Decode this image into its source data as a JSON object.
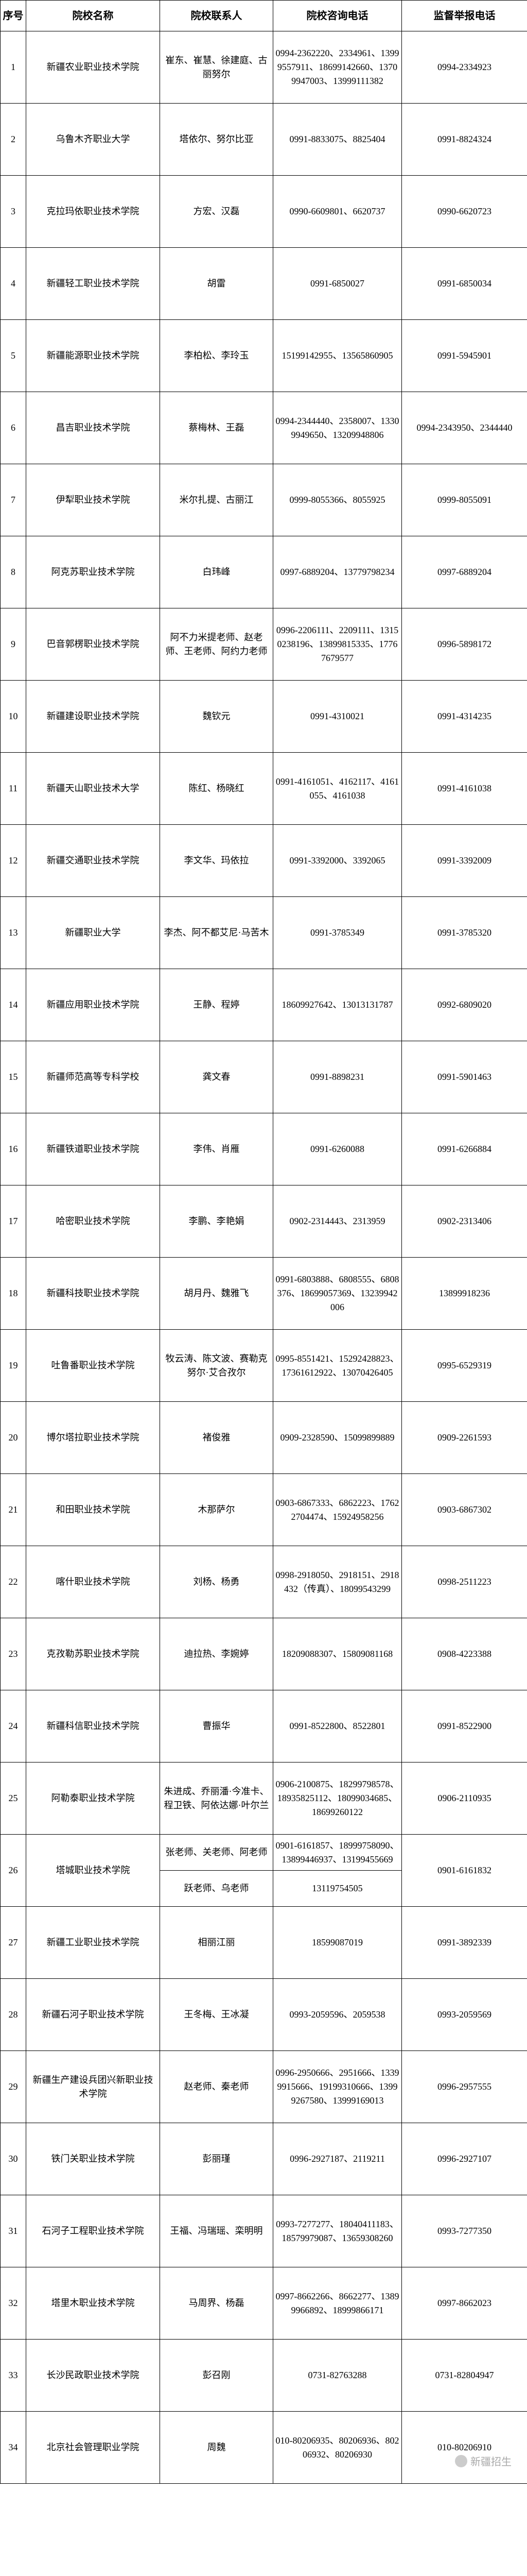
{
  "headers": [
    "序号",
    "院校名称",
    "院校联系人",
    "院校咨询电话",
    "监督举报电话"
  ],
  "col_classes": [
    "col-idx",
    "col-name",
    "col-contact",
    "col-phone",
    "col-supervise"
  ],
  "rows": [
    {
      "idx": "1",
      "name": "新疆农业职业技术学院",
      "contact": "崔东、崔慧、徐建庭、古丽努尔",
      "phone": "0994-2362220、2334961、13999557911、18699142660、13709947003、13999111382",
      "supervise": "0994-2334923"
    },
    {
      "idx": "2",
      "name": "乌鲁木齐职业大学",
      "contact": "塔依尔、努尔比亚",
      "phone": "0991-8833075、8825404",
      "supervise": "0991-8824324"
    },
    {
      "idx": "3",
      "name": "克拉玛依职业技术学院",
      "contact": "方宏、汉磊",
      "phone": "0990-6609801、6620737",
      "supervise": "0990-6620723"
    },
    {
      "idx": "4",
      "name": "新疆轻工职业技术学院",
      "contact": "胡雷",
      "phone": "0991-6850027",
      "supervise": "0991-6850034"
    },
    {
      "idx": "5",
      "name": "新疆能源职业技术学院",
      "contact": "李柏松、李玲玉",
      "phone": "15199142955、13565860905",
      "supervise": "0991-5945901"
    },
    {
      "idx": "6",
      "name": "昌吉职业技术学院",
      "contact": "蔡梅林、王磊",
      "phone": "0994-2344440、2358007、13309949650、13209948806",
      "supervise": "0994-2343950、2344440"
    },
    {
      "idx": "7",
      "name": "伊犁职业技术学院",
      "contact": "米尔扎提、古丽江",
      "phone": "0999-8055366、8055925",
      "supervise": "0999-8055091"
    },
    {
      "idx": "8",
      "name": "阿克苏职业技术学院",
      "contact": "白玮峰",
      "phone": "0997-6889204、13779798234",
      "supervise": "0997-6889204"
    },
    {
      "idx": "9",
      "name": "巴音郭楞职业技术学院",
      "contact": "阿不力米提老师、赵老师、王老师、阿约力老师",
      "phone": "0996-2206111、2209111、13150238196、13899815335、17767679577",
      "supervise": "0996-5898172"
    },
    {
      "idx": "10",
      "name": "新疆建设职业技术学院",
      "contact": "魏钦元",
      "phone": "0991-4310021",
      "supervise": "0991-4314235"
    },
    {
      "idx": "11",
      "name": "新疆天山职业技术大学",
      "contact": "陈红、杨晓红",
      "phone": "0991-4161051、4162117、4161055、4161038",
      "supervise": "0991-4161038"
    },
    {
      "idx": "12",
      "name": "新疆交通职业技术学院",
      "contact": "李文华、玛依拉",
      "phone": "0991-3392000、3392065",
      "supervise": "0991-3392009"
    },
    {
      "idx": "13",
      "name": "新疆职业大学",
      "contact": "李杰、阿不都艾尼·马苦木",
      "phone": "0991-3785349",
      "supervise": "0991-3785320"
    },
    {
      "idx": "14",
      "name": "新疆应用职业技术学院",
      "contact": "王静、程婷",
      "phone": "18609927642、13013131787",
      "supervise": "0992-6809020"
    },
    {
      "idx": "15",
      "name": "新疆师范高等专科学校",
      "contact": "龚文春",
      "phone": "0991-8898231",
      "supervise": "0991-5901463"
    },
    {
      "idx": "16",
      "name": "新疆铁道职业技术学院",
      "contact": "李伟、肖雁",
      "phone": "0991-6260088",
      "supervise": "0991-6266884"
    },
    {
      "idx": "17",
      "name": "哈密职业技术学院",
      "contact": "李鹏、李艳娟",
      "phone": "0902-2314443、2313959",
      "supervise": "0902-2313406"
    },
    {
      "idx": "18",
      "name": "新疆科技职业技术学院",
      "contact": "胡月丹、魏雅飞",
      "phone": "0991-6803888、6808555、6808376、18699057369、13239942006",
      "supervise": "13899918236"
    },
    {
      "idx": "19",
      "name": "吐鲁番职业技术学院",
      "contact": "牧云涛、陈文波、赛勒克努尔·艾合孜尔",
      "phone": "0995-8551421、15292428823、17361612922、13070426405",
      "supervise": "0995-6529319"
    },
    {
      "idx": "20",
      "name": "博尔塔拉职业技术学院",
      "contact": "褚俊雅",
      "phone": "0909-2328590、15099899889",
      "supervise": "0909-2261593"
    },
    {
      "idx": "21",
      "name": "和田职业技术学院",
      "contact": "木那萨尔",
      "phone": "0903-6867333、6862223、17622704474、15924958256",
      "supervise": "0903-6867302"
    },
    {
      "idx": "22",
      "name": "喀什职业技术学院",
      "contact": "刘杨、杨勇",
      "phone": "0998-2918050、2918151、2918432（传真）、18099543299",
      "supervise": "0998-2511223"
    },
    {
      "idx": "23",
      "name": "克孜勒苏职业技术学院",
      "contact": "迪拉热、李婉婷",
      "phone": "18209088307、15809081168",
      "supervise": "0908-4223388"
    },
    {
      "idx": "24",
      "name": "新疆科信职业技术学院",
      "contact": "曹振华",
      "phone": "0991-8522800、8522801",
      "supervise": "0991-8522900"
    },
    {
      "idx": "25",
      "name": "阿勒泰职业技术学院",
      "contact": "朱进成、乔丽潘·今准卡、程卫铁、阿依达娜·叶尔兰",
      "phone": "0906-2100875、18299798578、18935825112、18099034685、18699260122",
      "supervise": "0906-2110935"
    },
    {
      "idx": "26",
      "name": "塔城职业技术学院",
      "contact_split": [
        "张老师、关老师、阿老师",
        "跃老师、乌老师"
      ],
      "phone_split": [
        "0901-6161857、18999758090、13899446937、13199455669",
        "13119754505"
      ],
      "supervise": "0901-6161832"
    },
    {
      "idx": "27",
      "name": "新疆工业职业技术学院",
      "contact": "相丽江丽",
      "phone": "18599087019",
      "supervise": "0991-3892339"
    },
    {
      "idx": "28",
      "name": "新疆石河子职业技术学院",
      "contact": "王冬梅、王冰凝",
      "phone": "0993-2059596、2059538",
      "supervise": "0993-2059569"
    },
    {
      "idx": "29",
      "name": "新疆生产建设兵团兴新职业技术学院",
      "contact": "赵老师、秦老师",
      "phone": "0996-2950666、2951666、13399915666、19199310666、13999267580、13999169013",
      "supervise": "0996-2957555"
    },
    {
      "idx": "30",
      "name": "铁门关职业技术学院",
      "contact": "彭丽瑾",
      "phone": "0996-2927187、2119211",
      "supervise": "0996-2927107"
    },
    {
      "idx": "31",
      "name": "石河子工程职业技术学院",
      "contact": "王福、冯瑞瑶、栾明明",
      "phone": "0993-7277277、18040411183、18579979087、13659308260",
      "supervise": "0993-7277350"
    },
    {
      "idx": "32",
      "name": "塔里木职业技术学院",
      "contact": "马周界、杨磊",
      "phone": "0997-8662266、8662277、13899966892、18999866171",
      "supervise": "0997-8662023"
    },
    {
      "idx": "33",
      "name": "长沙民政职业技术学院",
      "contact": "彭召刚",
      "phone": "0731-82763288",
      "supervise": "0731-82804947"
    },
    {
      "idx": "34",
      "name": "北京社会管理职业学院",
      "contact": "周魏",
      "phone": "010-80206935、80206936、80206932、80206930",
      "supervise": "010-80206910"
    }
  ],
  "watermark": "新疆招生"
}
